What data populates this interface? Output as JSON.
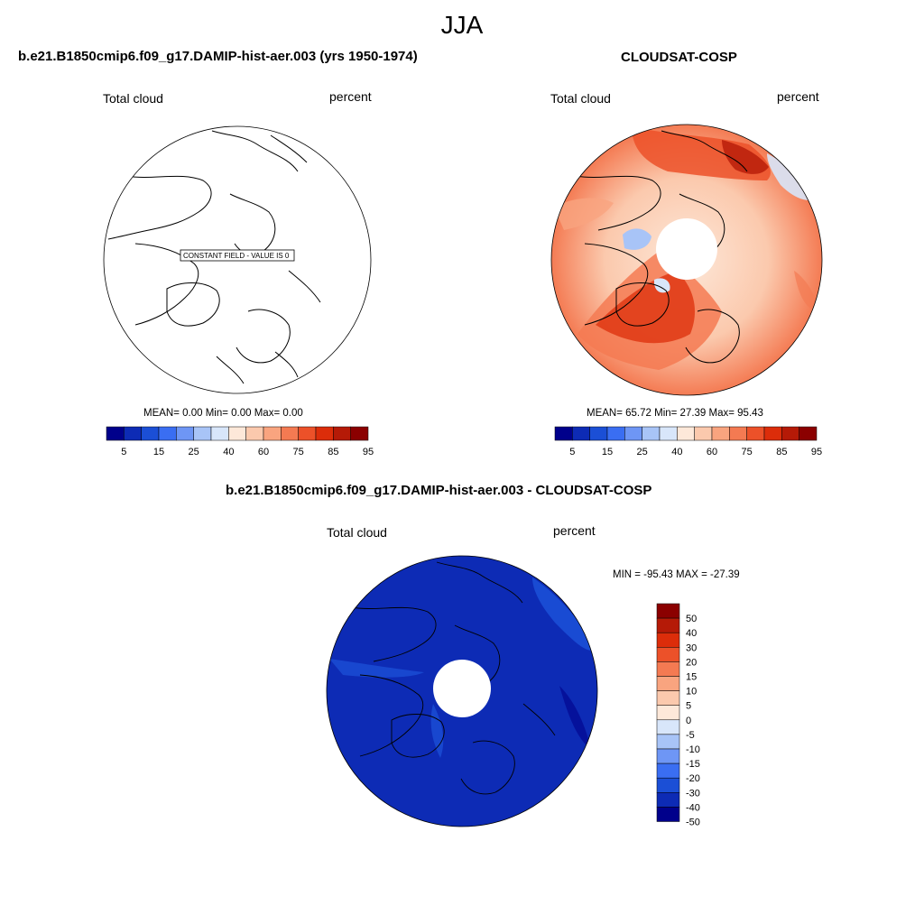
{
  "figure": {
    "season": "JJA"
  },
  "palette": [
    "#00008b",
    "#0d2bb5",
    "#1b4fd6",
    "#3a6ef2",
    "#6e96f5",
    "#a8c4f7",
    "#d8e6fa",
    "#fde8d9",
    "#fbc9ad",
    "#f9a47f",
    "#f47a52",
    "#ec5129",
    "#dc2d0a",
    "#b51a07",
    "#8b0000"
  ],
  "chart_data": [
    {
      "type": "heatmap",
      "title": "b.e21.B1850cmip6.f09_g17.DAMIP-hist-aer.003 (yrs 1950-1974)",
      "left_label": "Total cloud",
      "right_label": "percent",
      "annotation": "CONSTANT FIELD - VALUE IS 0",
      "stats": {
        "mean": "0.00",
        "min": "0.00",
        "max": "0.00"
      },
      "stats_text": "MEAN=   0.00  Min=   0.00  Max=   0.00",
      "colorbar": {
        "levels": [
          5,
          10,
          15,
          20,
          25,
          30,
          40,
          50,
          60,
          65,
          75,
          80,
          85,
          90,
          95
        ],
        "tick_labels": [
          "5",
          "15",
          "25",
          "40",
          "60",
          "75",
          "85",
          "95"
        ]
      }
    },
    {
      "type": "heatmap",
      "title": "CLOUDSAT-COSP",
      "left_label": "Total cloud",
      "right_label": "percent",
      "stats": {
        "mean": "65.72",
        "min": "27.39",
        "max": "95.43"
      },
      "stats_text": "MEAN=  65.72  Min=  27.39  Max=  95.43",
      "colorbar": {
        "levels": [
          5,
          10,
          15,
          20,
          25,
          30,
          40,
          50,
          60,
          65,
          75,
          80,
          85,
          90,
          95
        ],
        "tick_labels": [
          "5",
          "15",
          "25",
          "40",
          "60",
          "75",
          "85",
          "95"
        ]
      }
    },
    {
      "type": "heatmap",
      "title": "b.e21.B1850cmip6.f09_g17.DAMIP-hist-aer.003 - CLOUDSAT-COSP",
      "left_label": "Total cloud",
      "right_label": "percent",
      "minmax_text": "MIN = -95.43  MAX = -27.39",
      "stats": {
        "min": "-95.43",
        "max": "-27.39"
      },
      "colorbar": {
        "labels": [
          "50",
          "40",
          "30",
          "20",
          "15",
          "10",
          "5",
          "0",
          "-5",
          "-10",
          "-15",
          "-20",
          "-30",
          "-40",
          "-50"
        ]
      }
    }
  ]
}
